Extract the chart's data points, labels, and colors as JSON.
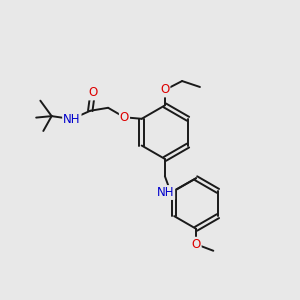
{
  "background_color": "#e8e8e8",
  "bond_color": "#1a1a1a",
  "atom_colors": {
    "O": "#dd0000",
    "N": "#0000cc",
    "C": "#1a1a1a"
  },
  "figsize": [
    3.0,
    3.0
  ],
  "dpi": 100
}
